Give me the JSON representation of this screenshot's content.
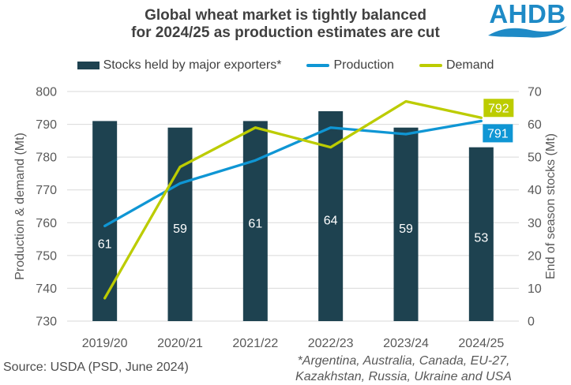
{
  "header": {
    "title_lines": [
      "Global wheat market is tightly balanced",
      "for 2024/25 as production estimates are cut"
    ],
    "logo_text": "AHDB"
  },
  "legend": {
    "items": [
      {
        "label": "Stocks held by major exporters*",
        "key": "stocks"
      },
      {
        "label": "Production",
        "key": "production"
      },
      {
        "label": "Demand",
        "key": "demand"
      }
    ]
  },
  "chart_data": {
    "type": "bar+line",
    "categories": [
      "2019/20",
      "2020/21",
      "2021/22",
      "2022/23",
      "2023/24",
      "2024/25"
    ],
    "series": [
      {
        "name": "Stocks held by major exporters*",
        "key": "stocks",
        "type": "bar",
        "axis": "right",
        "values": [
          61,
          59,
          61,
          64,
          59,
          53
        ],
        "data_labels": true
      },
      {
        "name": "Production",
        "key": "production",
        "type": "line",
        "axis": "left",
        "values": [
          759,
          772,
          779,
          789,
          787,
          791
        ],
        "end_label": "791"
      },
      {
        "name": "Demand",
        "key": "demand",
        "type": "line",
        "axis": "left",
        "values": [
          737,
          777,
          789,
          783,
          797,
          792
        ],
        "end_label": "792"
      }
    ],
    "left_axis": {
      "title": "Production & demand (Mt)",
      "min": 730,
      "max": 800,
      "step": 10
    },
    "right_axis": {
      "title": "End of season stocks (Mt)",
      "min": 0,
      "max": 70,
      "step": 10
    },
    "grid": true,
    "legend_position": "top"
  },
  "footer": {
    "source": "Source: USDA (PSD, June 2024)",
    "footnote_lines": [
      "*Argentina, Australia, Canada, EU-27,",
      "Kazakhstan, Russia, Ukraine and USA"
    ]
  },
  "colors": {
    "stocks": "#1e4250",
    "production": "#0f96d4",
    "demand": "#bccc00",
    "grid": "#d9d9d9",
    "axis_text": "#595959",
    "title_text": "#404040",
    "logo_blue": "#1e8ac6",
    "label_text": "#ffffff"
  }
}
